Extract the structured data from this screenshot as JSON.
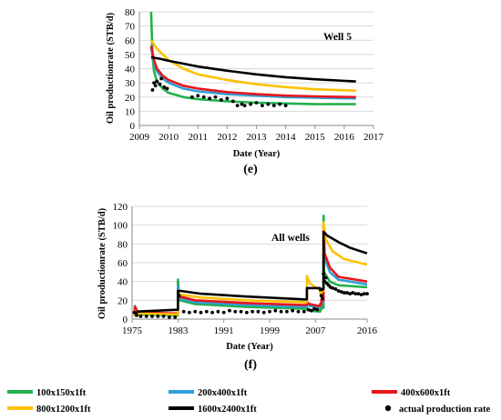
{
  "chart_data": [
    {
      "type": "line",
      "caption": "(e)",
      "annotation": "Well 5",
      "xlabel": "Date (Year)",
      "ylabel": "Oil productionrate (STB/d)",
      "xlim": [
        2009,
        2017
      ],
      "ylim": [
        0,
        80
      ],
      "xticks": [
        "2009",
        "2010",
        "2011",
        "2012",
        "2013",
        "2014",
        "2015",
        "2016",
        "2017"
      ],
      "yticks": [
        "0",
        "10",
        "20",
        "30",
        "40",
        "50",
        "60",
        "70",
        "80"
      ],
      "grid": true,
      "series": [
        {
          "name": "100x150x1ft",
          "color": "#22b14c",
          "x": [
            2009.4,
            2009.45,
            2009.5,
            2009.6,
            2009.8,
            2010.0,
            2010.5,
            2011,
            2012,
            2013,
            2014,
            2015,
            2016.4
          ],
          "y": [
            80,
            48,
            38,
            31,
            26,
            23,
            20,
            18.5,
            17,
            16,
            15.5,
            15,
            15
          ]
        },
        {
          "name": "200x400x1ft",
          "color": "#2e9fd8",
          "x": [
            2009.4,
            2009.5,
            2009.6,
            2009.8,
            2010.0,
            2010.5,
            2011,
            2012,
            2013,
            2014,
            2015,
            2016.4
          ],
          "y": [
            55,
            44,
            38,
            33,
            30,
            26,
            24,
            22,
            21,
            20,
            19.5,
            19
          ]
        },
        {
          "name": "400x600x1ft",
          "color": "#e8151b",
          "x": [
            2009.4,
            2009.5,
            2009.6,
            2009.8,
            2010.0,
            2010.5,
            2011,
            2012,
            2013,
            2014,
            2015,
            2016.4
          ],
          "y": [
            56,
            46,
            40,
            35,
            32,
            28,
            26,
            23.5,
            22,
            21,
            20.5,
            20
          ]
        },
        {
          "name": "800x1200x1ft",
          "color": "#ffc000",
          "x": [
            2009.4,
            2009.6,
            2009.8,
            2010.0,
            2010.5,
            2011,
            2012,
            2013,
            2014,
            2015,
            2016.4
          ],
          "y": [
            60,
            54,
            50,
            46,
            40,
            36,
            32,
            29,
            27,
            25.5,
            24.5
          ]
        },
        {
          "name": "1600x2400x1ft",
          "color": "#000000",
          "x": [
            2009.4,
            2009.7,
            2010.0,
            2010.5,
            2011,
            2012,
            2013,
            2014,
            2015,
            2016.4
          ],
          "y": [
            48,
            47,
            45.5,
            43.5,
            41.5,
            38.5,
            36,
            34,
            32.5,
            31
          ]
        },
        {
          "name": "actual production rate",
          "color": "#000000",
          "scatter": true,
          "x": [
            2009.45,
            2009.5,
            2009.55,
            2009.6,
            2009.7,
            2009.75,
            2009.85,
            2009.95,
            2010.8,
            2011.0,
            2011.2,
            2011.4,
            2011.6,
            2011.8,
            2012.0,
            2012.2,
            2012.35,
            2012.5,
            2012.6,
            2012.8,
            2013.0,
            2013.2,
            2013.4,
            2013.6,
            2013.8,
            2014.0
          ],
          "y": [
            25,
            30,
            28,
            31,
            29,
            33,
            27,
            26,
            20,
            21,
            20,
            19,
            20,
            18,
            19,
            17,
            14,
            15,
            14,
            15,
            16,
            14,
            15,
            14,
            15,
            14
          ]
        }
      ]
    },
    {
      "type": "line",
      "caption": "(f)",
      "annotation": "All wells",
      "xlabel": "Date (Year)",
      "ylabel": "Oil productionrate (STB/d)",
      "xlim": [
        1975,
        2016
      ],
      "ylim": [
        0,
        120
      ],
      "xticks": [
        "1975",
        "1983",
        "1991",
        "1999",
        "2007",
        "2016"
      ],
      "xtick_values": [
        1975,
        1983,
        1991,
        1999,
        2007,
        2016
      ],
      "yticks": [
        "0",
        "20",
        "40",
        "60",
        "80",
        "100",
        "120"
      ],
      "grid": true,
      "series": [
        {
          "name": "100x150x1ft",
          "color": "#22b14c",
          "x": [
            1975.5,
            1975.5,
            1976,
            1982.9,
            1983.0,
            1983.0,
            1983.3,
            1986,
            1995,
            2005,
            2005.5,
            2005.5,
            2006,
            2007.5,
            2007.8,
            2007.8,
            2008.0,
            2008.0,
            2008.4,
            2008.4,
            2008.5,
            2009.5,
            2011,
            2016
          ],
          "y": [
            3,
            12,
            5,
            4,
            4,
            42,
            20,
            16,
            13,
            11,
            11,
            10,
            9,
            8,
            8,
            10,
            10,
            12,
            12,
            110,
            50,
            40,
            36,
            34
          ]
        },
        {
          "name": "200x400x1ft",
          "color": "#2e9fd8",
          "x": [
            1975.5,
            1975.5,
            1976,
            1982.9,
            1983.0,
            1983.0,
            1983.3,
            1986,
            1995,
            2005,
            2005.5,
            2005.5,
            2006,
            2007.5,
            2007.8,
            2007.8,
            2008.0,
            2008.0,
            2008.4,
            2008.4,
            2008.6,
            2009.5,
            2011,
            2016
          ],
          "y": [
            3,
            14,
            6,
            5,
            5,
            35,
            22,
            18,
            15,
            13,
            13,
            16,
            14,
            12,
            12,
            14,
            14,
            18,
            18,
            95,
            65,
            50,
            42,
            37
          ]
        },
        {
          "name": "400x600x1ft",
          "color": "#e8151b",
          "x": [
            1975.5,
            1975.5,
            1976,
            1982.9,
            1983.0,
            1983.0,
            1983.3,
            1986,
            1995,
            2005,
            2005.5,
            2005.5,
            2006,
            2007.5,
            2007.8,
            2007.8,
            2008.0,
            2008.0,
            2008.4,
            2008.4,
            2008.6,
            2009.5,
            2011,
            2016
          ],
          "y": [
            3,
            13,
            7,
            6,
            6,
            30,
            24,
            20,
            17,
            15,
            15,
            18,
            16,
            14,
            14,
            16,
            16,
            20,
            20,
            100,
            70,
            55,
            45,
            40
          ]
        },
        {
          "name": "800x1200x1ft",
          "color": "#ffc000",
          "x": [
            1975.5,
            1975.5,
            1976,
            1982.9,
            1983.0,
            1983.0,
            1983.5,
            1987,
            1995,
            2005,
            2005.5,
            2005.5,
            2006,
            2007.5,
            2007.8,
            2007.8,
            2008.0,
            2008.0,
            2008.4,
            2008.4,
            2008.8,
            2010,
            2012,
            2016
          ],
          "y": [
            3,
            8,
            6,
            5,
            5,
            28,
            26,
            23,
            20,
            18,
            18,
            46,
            38,
            32,
            32,
            28,
            28,
            30,
            30,
            103,
            85,
            72,
            64,
            58
          ]
        },
        {
          "name": "1600x2400x1ft",
          "color": "#000000",
          "x": [
            1975.5,
            1976,
            1982.9,
            1983.0,
            1983.0,
            1983.5,
            1987,
            1995,
            2005,
            2005.5,
            2005.5,
            2007.5,
            2007.8,
            2007.8,
            2008.2,
            2008.2,
            2008.4,
            2008.4,
            2009,
            2011,
            2013,
            2016
          ],
          "y": [
            5,
            8,
            10,
            10,
            30,
            30,
            27,
            24,
            21,
            21,
            33,
            33,
            33,
            31,
            31,
            32,
            32,
            93,
            89,
            82,
            76,
            70
          ]
        },
        {
          "name": "actual production rate",
          "color": "#000000",
          "scatter": true,
          "x": [
            1975.4,
            1975.8,
            1976.5,
            1977.5,
            1978.5,
            1979.5,
            1980.5,
            1981.5,
            1982.5,
            1983.2,
            1984,
            1985,
            1986,
            1987,
            1988,
            1989,
            1990,
            1991,
            1992,
            1993,
            1994,
            1995,
            1996,
            1997,
            1998,
            1999,
            2000,
            2001,
            2002,
            2003,
            2004,
            2005,
            2005.8,
            2006.3,
            2006.8,
            2007.3,
            2008.0,
            2008.2,
            2008.4,
            2008.6,
            2008.8,
            2009.0,
            2009.3,
            2009.6,
            2010,
            2010.5,
            2011,
            2011.5,
            2012,
            2012.5,
            2013,
            2013.5,
            2014,
            2014.5,
            2015,
            2015.5,
            2016
          ],
          "y": [
            7,
            4,
            3,
            3,
            3,
            3,
            3,
            2,
            2,
            25,
            8,
            7,
            8,
            7,
            8,
            7,
            8,
            7,
            9,
            8,
            8,
            7,
            8,
            8,
            7,
            8,
            9,
            8,
            8,
            9,
            8,
            8,
            10,
            9,
            11,
            10,
            25,
            22,
            48,
            40,
            44,
            38,
            36,
            34,
            33,
            32,
            30,
            29,
            28,
            28,
            27,
            28,
            27,
            27,
            26,
            27,
            27
          ]
        }
      ]
    }
  ],
  "legend": [
    {
      "label": "100x150x1ft",
      "color": "#22b14c",
      "kind": "line"
    },
    {
      "label": "200x400x1ft",
      "color": "#2e9fd8",
      "kind": "line"
    },
    {
      "label": "400x600x1ft",
      "color": "#e8151b",
      "kind": "line"
    },
    {
      "label": "800x1200x1ft",
      "color": "#ffc000",
      "kind": "line"
    },
    {
      "label": "1600x2400x1ft",
      "color": "#000000",
      "kind": "line"
    },
    {
      "label": "actual production rate",
      "color": "#000000",
      "kind": "dot"
    }
  ]
}
